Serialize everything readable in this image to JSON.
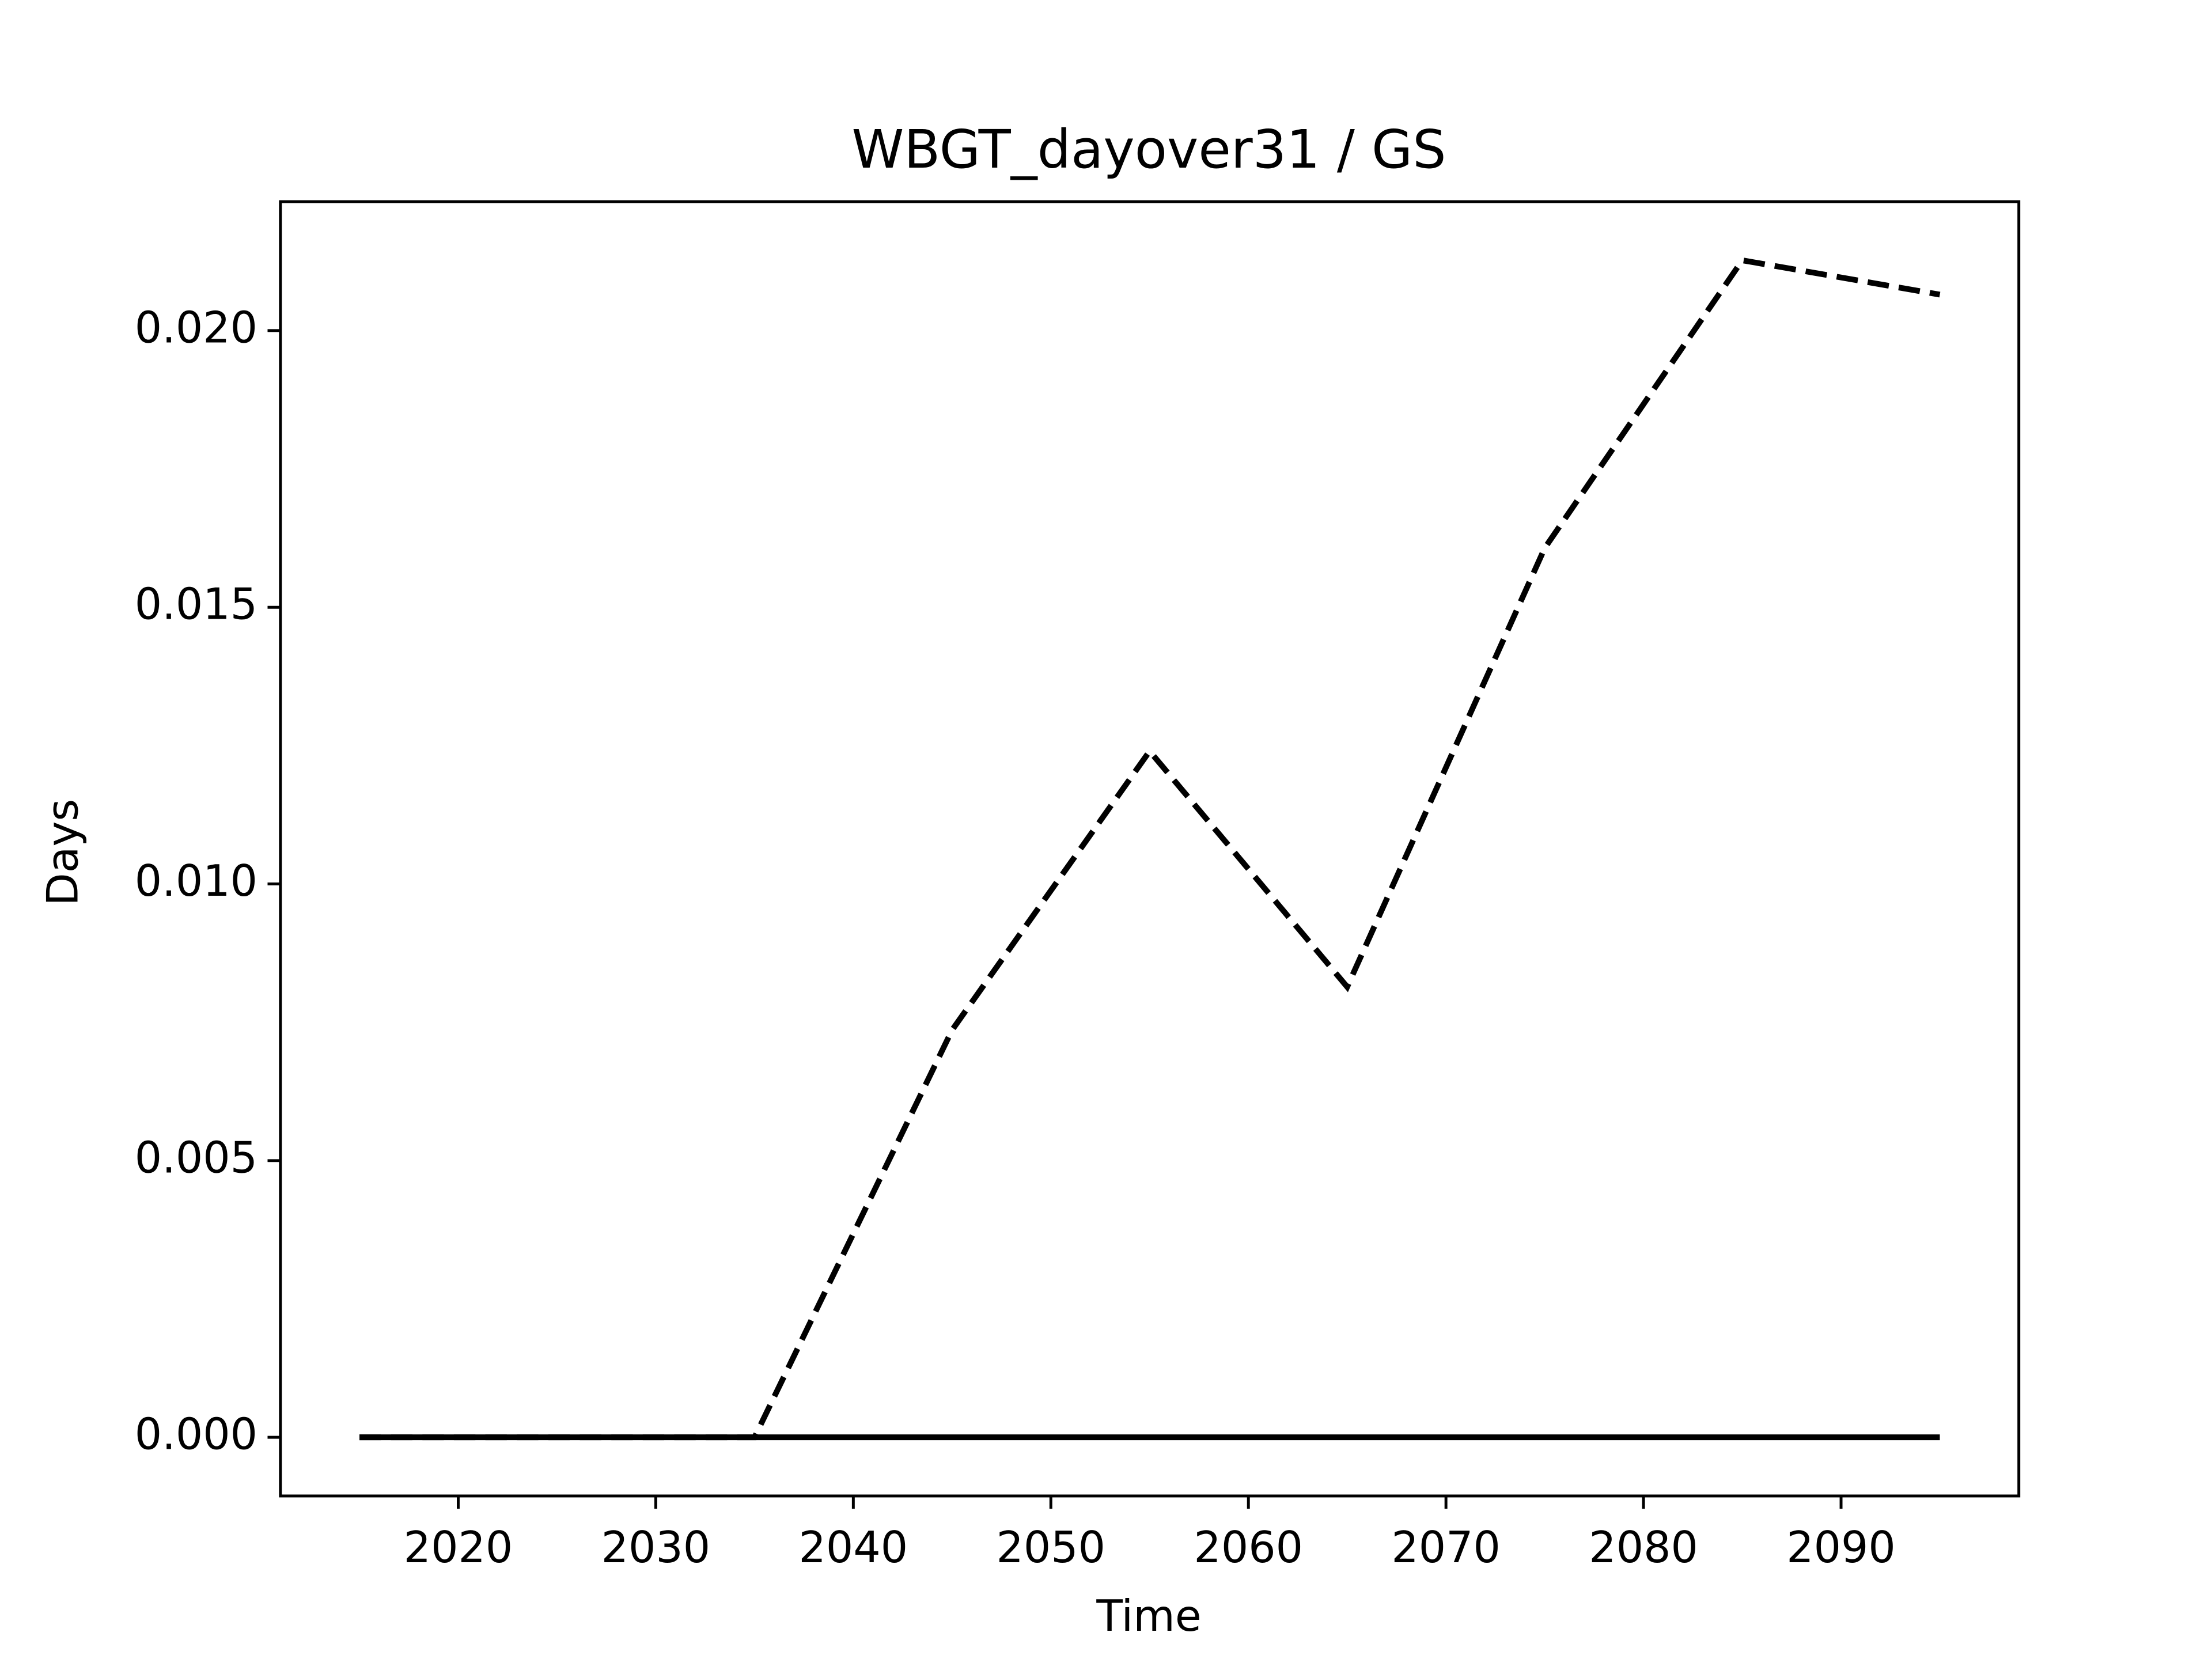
{
  "chart_data": {
    "type": "line",
    "title": "WBGT_dayover31 / GS",
    "x_label": "Time",
    "y_label": "Days",
    "x": [
      2015,
      2025,
      2035,
      2045,
      2055,
      2065,
      2075,
      2085,
      2095
    ],
    "series": [
      {
        "color": "#000000",
        "style": "dashed",
        "values": [
          0,
          0,
          0,
          0.00736,
          0.0124,
          0.00814,
          0.01607,
          0.02127,
          0.02065
        ]
      },
      {
        "color": "#000000",
        "style": "solid",
        "values": [
          0,
          0,
          0,
          0,
          0,
          0,
          0,
          0,
          0
        ]
      }
    ],
    "xlim": [
      2011,
      2099
    ],
    "xticks": [
      2020,
      2030,
      2040,
      2050,
      2060,
      2070,
      2080,
      2090
    ],
    "ylim": [
      -0.00106,
      0.02233
    ],
    "yticks": [
      {
        "value": 0,
        "label": "0.000"
      },
      {
        "value": 0.005,
        "label": "0.005"
      },
      {
        "value": 0.01,
        "label": "0.010"
      },
      {
        "value": 0.015,
        "label": "0.015"
      },
      {
        "value": 0.02,
        "label": "0.020"
      }
    ],
    "grid": false
  }
}
